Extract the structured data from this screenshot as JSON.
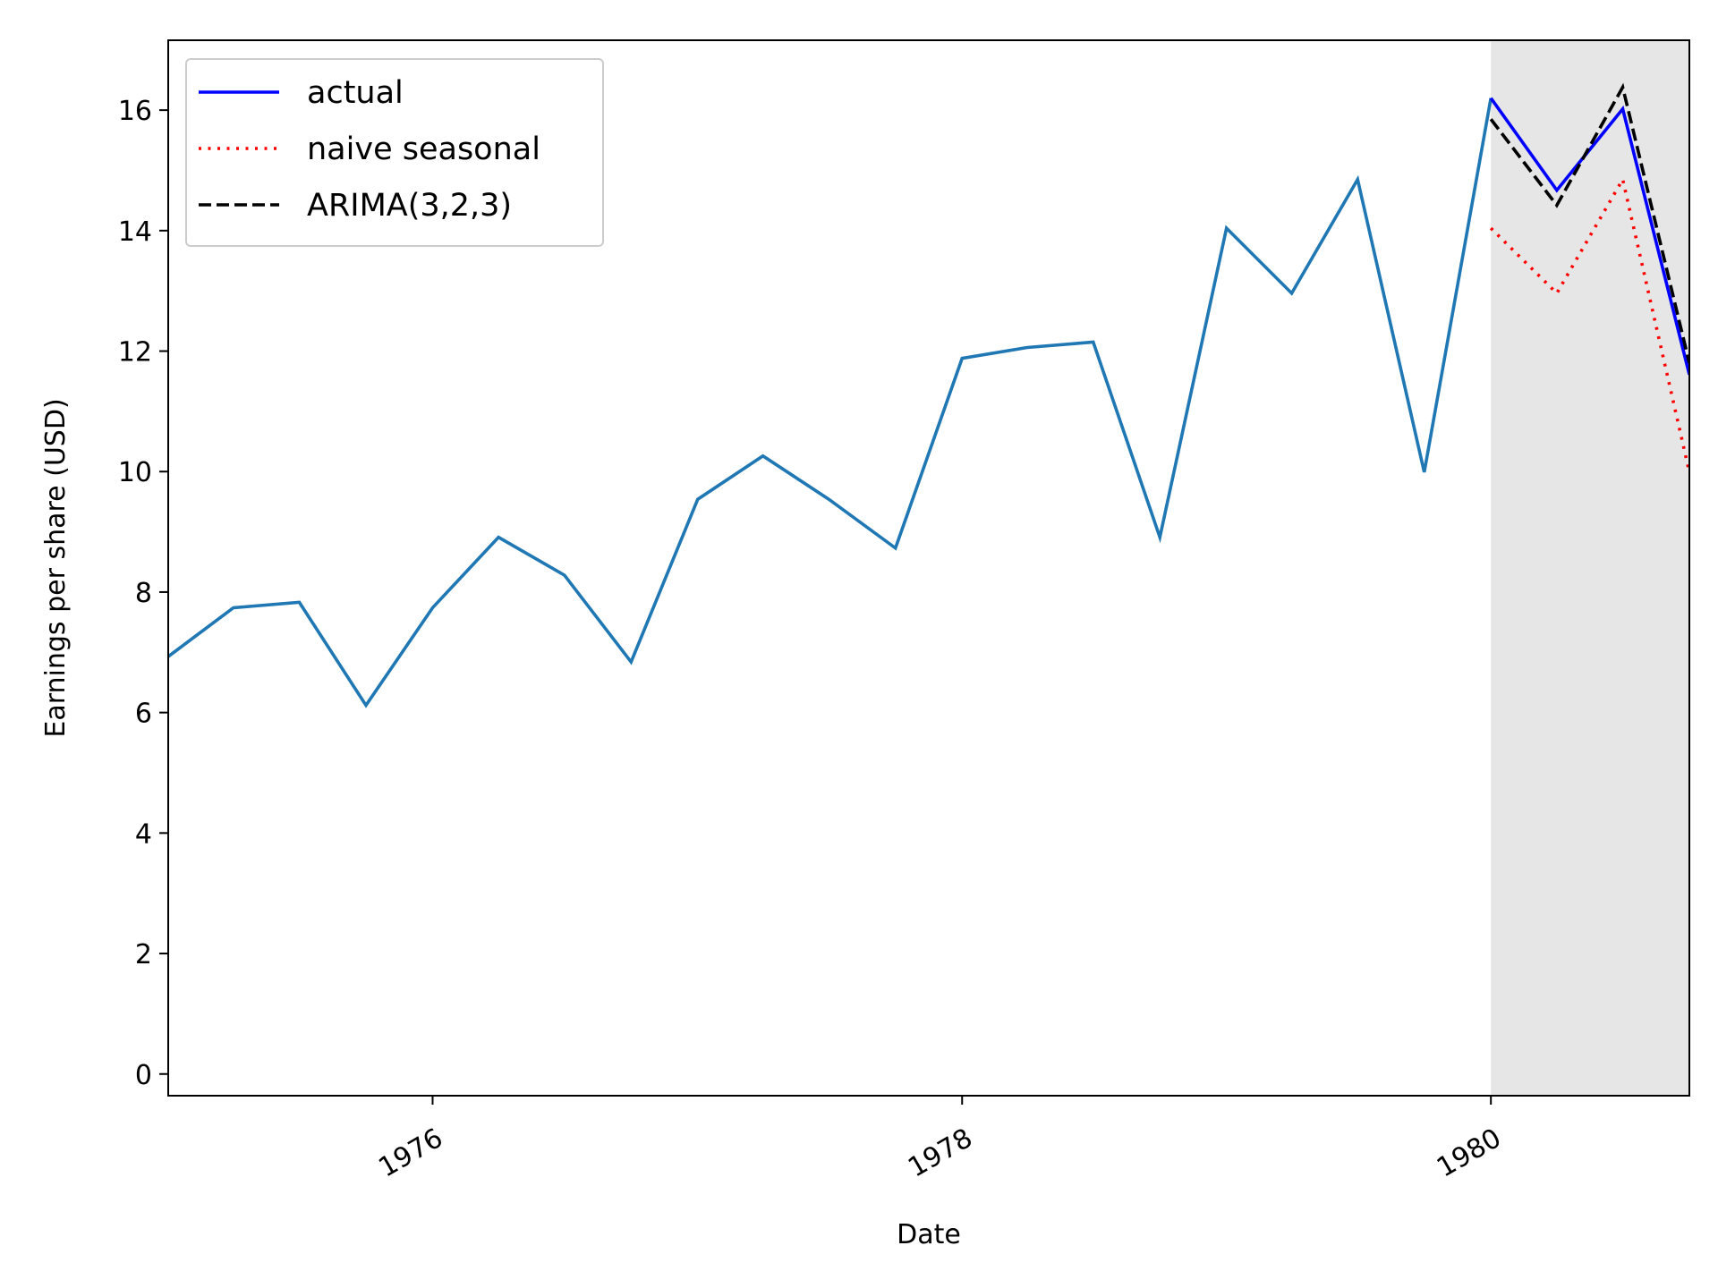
{
  "chart_data": {
    "type": "line",
    "title": "",
    "xlabel": "Date",
    "ylabel": "Earnings per share (USD)",
    "xlim": [
      "1975-01-01",
      "1980-10-01"
    ],
    "ylim": [
      -0.36,
      17.16
    ],
    "x_ticks": [
      {
        "date": "1976-01-01",
        "label": "1976"
      },
      {
        "date": "1978-01-01",
        "label": "1978"
      },
      {
        "date": "1980-01-01",
        "label": "1980"
      }
    ],
    "y_ticks": [
      0,
      2,
      4,
      6,
      8,
      10,
      12,
      14,
      16
    ],
    "grid": false,
    "legend_position": "upper-left",
    "shaded_region": {
      "from": "1980-01-01",
      "to": "1980-10-01",
      "color": "#808080"
    },
    "series": [
      {
        "color": "#1f77b4",
        "style": "solid",
        "in_legend": false,
        "points": [
          {
            "x": "1975-01-01",
            "y": 6.93
          },
          {
            "x": "1975-04-01",
            "y": 7.74
          },
          {
            "x": "1975-07-01",
            "y": 7.83
          },
          {
            "x": "1975-10-01",
            "y": 6.12
          },
          {
            "x": "1976-01-01",
            "y": 7.74
          },
          {
            "x": "1976-04-01",
            "y": 8.91
          },
          {
            "x": "1976-07-01",
            "y": 8.28
          },
          {
            "x": "1976-10-01",
            "y": 6.84
          },
          {
            "x": "1977-01-01",
            "y": 9.54
          },
          {
            "x": "1977-04-01",
            "y": 10.26
          },
          {
            "x": "1977-07-01",
            "y": 9.54
          },
          {
            "x": "1977-10-01",
            "y": 8.73
          },
          {
            "x": "1978-01-01",
            "y": 11.88
          },
          {
            "x": "1978-04-01",
            "y": 12.06
          },
          {
            "x": "1978-07-01",
            "y": 12.15
          },
          {
            "x": "1978-10-01",
            "y": 8.91
          },
          {
            "x": "1979-01-01",
            "y": 14.04
          },
          {
            "x": "1979-04-01",
            "y": 12.96
          },
          {
            "x": "1979-07-01",
            "y": 14.85
          },
          {
            "x": "1979-10-01",
            "y": 9.99
          },
          {
            "x": "1980-01-01",
            "y": 16.2
          }
        ]
      },
      {
        "name": "actual",
        "color": "#0000ff",
        "style": "solid",
        "in_legend": true,
        "points": [
          {
            "x": "1980-01-01",
            "y": 16.2
          },
          {
            "x": "1980-04-01",
            "y": 14.67
          },
          {
            "x": "1980-07-01",
            "y": 16.02
          },
          {
            "x": "1980-10-01",
            "y": 11.61
          }
        ]
      },
      {
        "name": "naive seasonal",
        "color": "#ff0000",
        "style": "dotted",
        "in_legend": true,
        "points": [
          {
            "x": "1980-01-01",
            "y": 14.04
          },
          {
            "x": "1980-04-01",
            "y": 12.96
          },
          {
            "x": "1980-07-01",
            "y": 14.85
          },
          {
            "x": "1980-10-01",
            "y": 9.99
          }
        ]
      },
      {
        "name": "ARIMA(3,2,3)",
        "color": "#000000",
        "style": "dashed",
        "in_legend": true,
        "points": [
          {
            "x": "1980-01-01",
            "y": 15.85
          },
          {
            "x": "1980-04-01",
            "y": 14.42
          },
          {
            "x": "1980-07-01",
            "y": 16.38
          },
          {
            "x": "1980-10-01",
            "y": 11.8
          }
        ]
      }
    ]
  }
}
